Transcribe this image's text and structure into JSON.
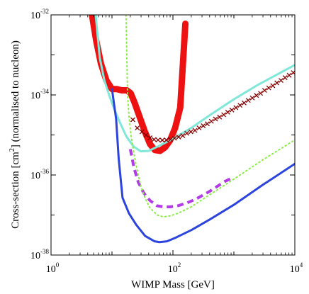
{
  "chart_data": {
    "type": "line",
    "xlabel": "WIMP Mass [GeV]",
    "ylabel": {
      "before": "Cross-section [cm",
      "superscript": "2",
      "after": "] (normalised to nucleon)"
    },
    "x_scale": "log",
    "y_scale": "log",
    "xlim": [
      1,
      10000
    ],
    "ylim": [
      1e-38,
      1e-32
    ],
    "grid": false,
    "legend": "none",
    "x_ticks": [
      {
        "value": 1,
        "base": "10",
        "exp": "0"
      },
      {
        "value": 100,
        "base": "10",
        "exp": "2"
      },
      {
        "value": 10000,
        "base": "10",
        "exp": "4"
      }
    ],
    "y_ticks": [
      {
        "value": 1e-38,
        "base": "10",
        "exp": "-38"
      },
      {
        "value": 1e-36,
        "base": "10",
        "exp": "-36"
      },
      {
        "value": 1e-34,
        "base": "10",
        "exp": "-34"
      },
      {
        "value": 1e-32,
        "base": "10",
        "exp": "-32"
      }
    ],
    "series": [
      {
        "color": "#ee1111",
        "style": "thick-band",
        "width": 9,
        "x": [
          4.7,
          5.5,
          6.6,
          8.1,
          10.0,
          12.0,
          14.5,
          17.6,
          20.3,
          23.4,
          28.5,
          34.7,
          42.2,
          50.5,
          61.2,
          74.3,
          89.7,
          108.7,
          131.8,
          160.0
        ],
        "y": [
          1e-32,
          2.3e-33,
          6e-34,
          2.3e-34,
          1.4e-34,
          1.4e-34,
          1.3e-34,
          1.3e-34,
          1.1e-34,
          6.5e-35,
          2.8e-35,
          1.2e-35,
          5.9e-36,
          4.2e-36,
          4e-36,
          4.9e-36,
          7.3e-36,
          1.5e-35,
          4.8e-35,
          6e-33
        ]
      },
      {
        "color": "#7fe8d8",
        "style": "solid",
        "width": 3,
        "x": [
          5.4,
          6.3,
          7.5,
          9.1,
          11.0,
          13.6,
          17.2,
          22.7,
          29.8,
          40.0,
          57.0,
          100.0,
          200.0,
          400.0,
          1000.0,
          2500.0,
          10000.0
        ],
        "y": [
          1e-32,
          8.5e-34,
          2.3e-34,
          9.3e-35,
          4.3e-35,
          2e-35,
          9.2e-36,
          5.1e-36,
          3.9e-36,
          4e-36,
          5.2e-36,
          8e-36,
          1.5e-35,
          3.1e-35,
          7.8e-35,
          1.8e-34,
          5.6e-34
        ]
      },
      {
        "color": "#2c44dd",
        "style": "solid",
        "width": 3,
        "x": [
          10.0,
          11.7,
          12.9,
          14.9,
          19.0,
          25.0,
          35.0,
          50.0,
          60.0,
          80.0,
          110.0,
          200.0,
          400.0,
          1000.0,
          3000.0,
          10000.0
        ],
        "y": [
          1.4e-34,
          2.5e-35,
          2.5e-36,
          2.7e-37,
          1.1e-37,
          5.7e-38,
          3e-38,
          2.2e-38,
          2.1e-38,
          2.2e-38,
          2.7e-38,
          4.2e-38,
          7.7e-38,
          1.8e-37,
          5.7e-37,
          1.9e-36
        ]
      },
      {
        "color": "#b23ae8",
        "style": "dashed",
        "width": 4,
        "x": [
          20.0,
          23.0,
          27.0,
          33.0,
          42.0,
          55.0,
          70.0,
          90.0,
          120.0,
          170.0,
          250.0,
          400.0,
          700.0,
          1000.0
        ],
        "y": [
          4.4e-36,
          1.5e-36,
          6.6e-37,
          3.6e-37,
          2.3e-37,
          1.7e-37,
          1.6e-37,
          1.6e-37,
          1.7e-37,
          2e-37,
          2.6e-37,
          3.9e-37,
          6.8e-37,
          8.9e-37
        ]
      },
      {
        "color": "#88ee44",
        "style": "dotted",
        "width": 2,
        "x": [
          17.0,
          17.5,
          18.0,
          19.0,
          20.5,
          22.5,
          24.5,
          27.0,
          30.0,
          35.0,
          42.0,
          55.0,
          70.0,
          90.0,
          120.0,
          200.0,
          400.0,
          1000.0,
          3000.0,
          10000.0
        ],
        "y": [
          1e-32,
          1e-33,
          1e-34,
          3e-35,
          1e-35,
          4e-36,
          2e-36,
          1e-36,
          5e-37,
          2.6e-37,
          1.5e-37,
          1e-37,
          9e-38,
          9.5e-38,
          1.1e-37,
          1.6e-37,
          3.2e-37,
          7.9e-37,
          2.4e-36,
          7.5e-36
        ]
      },
      {
        "color": "#880000",
        "style": "crosses",
        "width": 1.3,
        "x": [
          22.0,
          26.0,
          31.0,
          36.0,
          42.0,
          49.0,
          57.0,
          67.0,
          78.0,
          91.0,
          106.0,
          124.0,
          145.0,
          169.0,
          197.0,
          230.0,
          269.0,
          314.0,
          366.0,
          427.0,
          499.0,
          582.0,
          680.0,
          793.0,
          926.0,
          1081.0,
          1262.0,
          1473.0,
          1719.0,
          2007.0,
          2343.0,
          2735.0,
          3193.0,
          3727.0,
          4351.0,
          5079.0,
          5929.0,
          6921.0,
          8080.0,
          9432.0
        ],
        "y": [
          2.4e-35,
          1.5e-35,
          1.2e-35,
          9.9e-36,
          8.5e-36,
          7.7e-36,
          7.5e-36,
          7.4e-36,
          7.5e-36,
          7.7e-36,
          8.3e-36,
          8.9e-36,
          9.6e-36,
          1.1e-35,
          1.2e-35,
          1.3e-35,
          1.5e-35,
          1.7e-35,
          1.9e-35,
          2.2e-35,
          2.5e-35,
          2.8e-35,
          3.2e-35,
          3.7e-35,
          4.2e-35,
          4.8e-35,
          5.5e-35,
          6.3e-35,
          7.3e-35,
          8.4e-35,
          9.7e-35,
          1.1e-34,
          1.3e-34,
          1.5e-34,
          1.7e-34,
          2e-34,
          2.3e-34,
          2.7e-34,
          3.1e-34,
          3.6e-34
        ]
      }
    ]
  }
}
